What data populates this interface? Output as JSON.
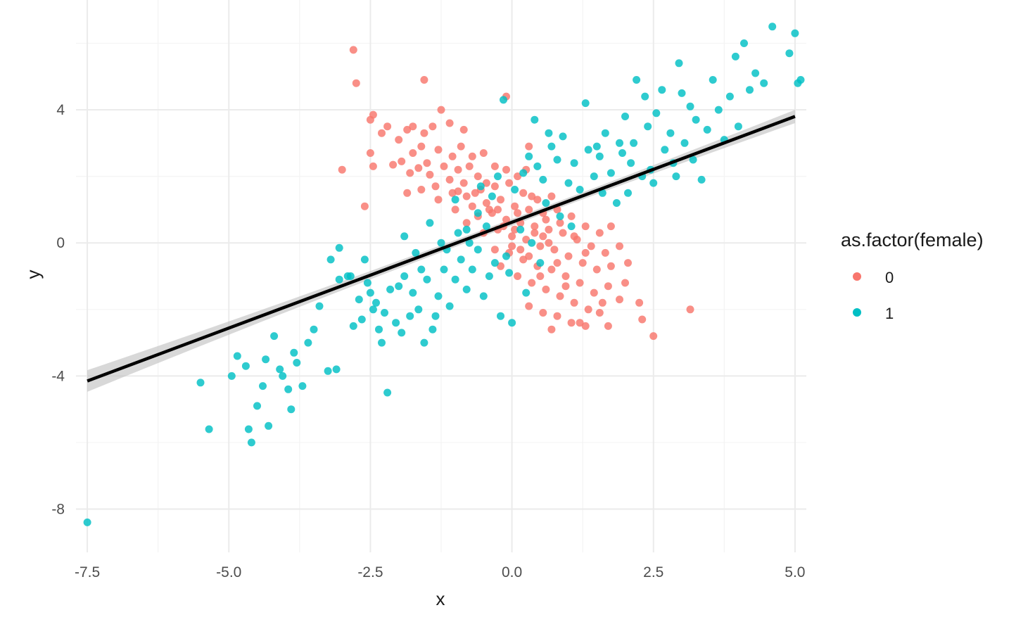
{
  "chart_data": {
    "type": "scatter",
    "title": "",
    "xlabel": "x",
    "ylabel": "y",
    "xlim": [
      -7.7,
      5.2
    ],
    "ylim": [
      -9.3,
      7.3
    ],
    "x_ticks": [
      -7.5,
      -5.0,
      -2.5,
      0.0,
      2.5,
      5.0
    ],
    "x_tick_labels": [
      "-7.5",
      "-5.0",
      "-2.5",
      "0.0",
      "2.5",
      "5.0"
    ],
    "y_ticks": [
      -8,
      -4,
      0,
      4
    ],
    "y_tick_labels": [
      "-8",
      "-4",
      "0",
      "4"
    ],
    "grid": true,
    "legend": {
      "title": "as.factor(female)",
      "position": "right"
    },
    "series": [
      {
        "name": "0",
        "color": "#F8766D",
        "points": [
          [
            -2.8,
            5.8
          ],
          [
            -2.75,
            4.8
          ],
          [
            -1.55,
            4.9
          ],
          [
            -1.25,
            4.0
          ],
          [
            -0.1,
            4.4
          ],
          [
            -3.0,
            2.2
          ],
          [
            -2.6,
            1.1
          ],
          [
            -2.5,
            3.7
          ],
          [
            -2.45,
            3.85
          ],
          [
            -2.3,
            3.3
          ],
          [
            -2.2,
            3.5
          ],
          [
            -2.5,
            2.7
          ],
          [
            -2.45,
            2.3
          ],
          [
            -2.0,
            3.1
          ],
          [
            -1.85,
            3.4
          ],
          [
            -1.75,
            3.5
          ],
          [
            -1.55,
            3.3
          ],
          [
            -1.4,
            3.5
          ],
          [
            -1.1,
            3.6
          ],
          [
            -0.85,
            3.4
          ],
          [
            -0.9,
            2.9
          ],
          [
            -1.05,
            2.6
          ],
          [
            -1.3,
            2.8
          ],
          [
            -1.6,
            2.9
          ],
          [
            -1.75,
            2.7
          ],
          [
            -1.95,
            2.45
          ],
          [
            -2.1,
            2.35
          ],
          [
            -1.8,
            2.1
          ],
          [
            -1.5,
            2.4
          ],
          [
            -1.2,
            2.3
          ],
          [
            -0.95,
            2.2
          ],
          [
            -0.7,
            2.6
          ],
          [
            -0.5,
            2.7
          ],
          [
            -0.3,
            2.3
          ],
          [
            -0.1,
            2.2
          ],
          [
            0.1,
            2.0
          ],
          [
            0.25,
            2.2
          ],
          [
            0.3,
            2.9
          ],
          [
            -0.6,
            2.0
          ],
          [
            -0.85,
            1.8
          ],
          [
            -1.1,
            1.9
          ],
          [
            -1.35,
            1.7
          ],
          [
            -1.6,
            1.6
          ],
          [
            -1.85,
            1.5
          ],
          [
            -1.3,
            1.3
          ],
          [
            -1.05,
            1.5
          ],
          [
            -0.8,
            1.4
          ],
          [
            -0.55,
            1.6
          ],
          [
            -0.3,
            1.7
          ],
          [
            -0.05,
            1.8
          ],
          [
            0.2,
            1.5
          ],
          [
            0.45,
            1.3
          ],
          [
            0.7,
            1.4
          ],
          [
            -0.7,
            1.1
          ],
          [
            -0.45,
            1.2
          ],
          [
            -0.2,
            1.3
          ],
          [
            0.05,
            1.1
          ],
          [
            0.3,
            1.0
          ],
          [
            0.55,
            0.9
          ],
          [
            0.8,
            1.0
          ],
          [
            1.05,
            0.8
          ],
          [
            1.3,
            0.5
          ],
          [
            1.55,
            0.3
          ],
          [
            1.75,
            0.5
          ],
          [
            -0.6,
            0.8
          ],
          [
            -0.35,
            0.9
          ],
          [
            -0.1,
            0.7
          ],
          [
            0.15,
            0.6
          ],
          [
            0.4,
            0.5
          ],
          [
            0.65,
            0.4
          ],
          [
            0.9,
            0.3
          ],
          [
            1.15,
            0.1
          ],
          [
            1.4,
            -0.1
          ],
          [
            1.65,
            -0.3
          ],
          [
            1.9,
            -0.1
          ],
          [
            2.05,
            -0.6
          ],
          [
            -0.5,
            0.3
          ],
          [
            -0.25,
            0.4
          ],
          [
            0.0,
            0.2
          ],
          [
            0.25,
            0.1
          ],
          [
            0.5,
            -0.1
          ],
          [
            0.75,
            -0.2
          ],
          [
            1.0,
            -0.4
          ],
          [
            1.25,
            -0.6
          ],
          [
            1.5,
            -0.8
          ],
          [
            1.75,
            -0.7
          ],
          [
            2.0,
            -1.2
          ],
          [
            -0.3,
            -0.2
          ],
          [
            -0.05,
            -0.3
          ],
          [
            0.2,
            -0.5
          ],
          [
            0.45,
            -0.7
          ],
          [
            0.7,
            -0.8
          ],
          [
            0.95,
            -1.0
          ],
          [
            1.2,
            -1.2
          ],
          [
            1.45,
            -1.5
          ],
          [
            1.7,
            -1.3
          ],
          [
            1.9,
            -1.7
          ],
          [
            0.1,
            -1.0
          ],
          [
            0.35,
            -1.2
          ],
          [
            0.6,
            -1.4
          ],
          [
            0.85,
            -1.6
          ],
          [
            1.1,
            -1.8
          ],
          [
            1.35,
            -2.0
          ],
          [
            1.55,
            -2.1
          ],
          [
            0.3,
            -1.9
          ],
          [
            0.55,
            -2.1
          ],
          [
            0.8,
            -2.2
          ],
          [
            1.05,
            -2.4
          ],
          [
            1.3,
            -2.5
          ],
          [
            1.7,
            -2.5
          ],
          [
            0.7,
            -2.6
          ],
          [
            1.2,
            -2.4
          ],
          [
            2.25,
            -1.8
          ],
          [
            2.3,
            -2.3
          ],
          [
            2.5,
            -2.8
          ],
          [
            3.15,
            -2.0
          ],
          [
            -0.4,
            1.0
          ],
          [
            -0.15,
            0.5
          ],
          [
            0.1,
            0.9
          ],
          [
            0.35,
            1.4
          ],
          [
            0.6,
            0.7
          ],
          [
            -0.8,
            0.6
          ],
          [
            -1.0,
            1.0
          ],
          [
            -0.2,
            -0.7
          ],
          [
            0.0,
            -0.1
          ],
          [
            0.3,
            -0.4
          ],
          [
            0.55,
            0.2
          ],
          [
            0.8,
            -0.6
          ],
          [
            -0.45,
            1.8
          ],
          [
            -0.65,
            1.5
          ],
          [
            -0.25,
            1.0
          ],
          [
            0.05,
            0.4
          ],
          [
            0.4,
            0.3
          ],
          [
            0.15,
            -0.2
          ],
          [
            0.65,
            0.0
          ],
          [
            -1.45,
            2.05
          ],
          [
            -1.65,
            2.25
          ],
          [
            -0.95,
            1.55
          ],
          [
            0.85,
            0.6
          ],
          [
            1.1,
            0.2
          ],
          [
            1.3,
            -0.3
          ],
          [
            0.5,
            -1.0
          ],
          [
            0.95,
            -1.3
          ],
          [
            1.6,
            -1.8
          ],
          [
            -0.75,
            2.3
          ]
        ]
      },
      {
        "name": "1",
        "color": "#00BFC4",
        "points": [
          [
            -7.5,
            -8.4
          ],
          [
            -5.5,
            -4.2
          ],
          [
            -5.35,
            -5.6
          ],
          [
            -4.95,
            -4.0
          ],
          [
            -4.85,
            -3.4
          ],
          [
            -4.7,
            -3.7
          ],
          [
            -4.65,
            -5.6
          ],
          [
            -4.6,
            -6.0
          ],
          [
            -4.5,
            -4.9
          ],
          [
            -4.4,
            -4.3
          ],
          [
            -4.35,
            -3.5
          ],
          [
            -4.3,
            -5.5
          ],
          [
            -4.2,
            -2.8
          ],
          [
            -4.1,
            -3.8
          ],
          [
            -4.05,
            -4.0
          ],
          [
            -3.95,
            -4.4
          ],
          [
            -3.9,
            -5.0
          ],
          [
            -3.85,
            -3.3
          ],
          [
            -3.8,
            -3.6
          ],
          [
            -3.7,
            -4.3
          ],
          [
            -3.6,
            -3.0
          ],
          [
            -3.5,
            -2.6
          ],
          [
            -3.4,
            -1.9
          ],
          [
            -3.25,
            -3.85
          ],
          [
            -3.1,
            -3.8
          ],
          [
            -3.05,
            -1.1
          ],
          [
            -3.05,
            -0.15
          ],
          [
            -3.2,
            -0.5
          ],
          [
            -2.9,
            -1.0
          ],
          [
            -2.8,
            -2.5
          ],
          [
            -2.7,
            -1.7
          ],
          [
            -2.6,
            -0.5
          ],
          [
            -2.55,
            -1.2
          ],
          [
            -2.45,
            -2.0
          ],
          [
            -2.4,
            -1.8
          ],
          [
            -2.35,
            -2.6
          ],
          [
            -2.3,
            -3.0
          ],
          [
            -2.25,
            -2.1
          ],
          [
            -2.2,
            -4.5
          ],
          [
            -2.15,
            -1.4
          ],
          [
            -2.05,
            -2.4
          ],
          [
            -1.95,
            -2.7
          ],
          [
            -1.9,
            -1.0
          ],
          [
            -1.8,
            -2.2
          ],
          [
            -1.75,
            -1.5
          ],
          [
            -1.65,
            -2.0
          ],
          [
            -1.55,
            -3.0
          ],
          [
            -1.5,
            -1.1
          ],
          [
            -1.4,
            -2.6
          ],
          [
            -1.3,
            -1.6
          ],
          [
            -1.2,
            -0.8
          ],
          [
            -1.1,
            -1.9
          ],
          [
            -1.0,
            -1.1
          ],
          [
            -0.9,
            -0.5
          ],
          [
            -0.8,
            -1.4
          ],
          [
            -0.7,
            -0.8
          ],
          [
            -0.6,
            -0.2
          ],
          [
            -0.5,
            -1.6
          ],
          [
            -0.4,
            -1.0
          ],
          [
            -0.3,
            -0.6
          ],
          [
            -0.2,
            -2.2
          ],
          [
            -0.1,
            -0.4
          ],
          [
            0.0,
            -2.4
          ],
          [
            -1.9,
            0.2
          ],
          [
            -1.7,
            -0.3
          ],
          [
            -1.45,
            0.6
          ],
          [
            -1.25,
            0.0
          ],
          [
            -1.0,
            1.3
          ],
          [
            -0.8,
            0.4
          ],
          [
            -0.6,
            0.9
          ],
          [
            -0.45,
            0.5
          ],
          [
            -0.35,
            1.4
          ],
          [
            -0.15,
            4.3
          ],
          [
            -0.25,
            2.0
          ],
          [
            0.05,
            1.6
          ],
          [
            0.2,
            2.1
          ],
          [
            0.3,
            2.6
          ],
          [
            0.45,
            2.3
          ],
          [
            0.55,
            1.9
          ],
          [
            0.7,
            2.9
          ],
          [
            0.8,
            2.5
          ],
          [
            0.9,
            3.2
          ],
          [
            1.0,
            1.8
          ],
          [
            1.1,
            2.4
          ],
          [
            1.2,
            1.6
          ],
          [
            1.3,
            4.2
          ],
          [
            1.35,
            2.8
          ],
          [
            1.45,
            2.0
          ],
          [
            1.55,
            2.6
          ],
          [
            1.65,
            3.3
          ],
          [
            1.75,
            2.1
          ],
          [
            1.85,
            1.2
          ],
          [
            1.95,
            2.7
          ],
          [
            2.0,
            3.8
          ],
          [
            2.05,
            1.5
          ],
          [
            2.1,
            2.4
          ],
          [
            2.15,
            3.0
          ],
          [
            2.2,
            4.9
          ],
          [
            2.3,
            2.0
          ],
          [
            2.35,
            4.4
          ],
          [
            2.4,
            3.5
          ],
          [
            2.45,
            2.2
          ],
          [
            2.55,
            3.9
          ],
          [
            2.65,
            4.6
          ],
          [
            2.7,
            2.8
          ],
          [
            2.8,
            3.3
          ],
          [
            2.85,
            2.4
          ],
          [
            2.95,
            5.4
          ],
          [
            3.0,
            4.5
          ],
          [
            3.05,
            3.0
          ],
          [
            3.15,
            4.1
          ],
          [
            3.25,
            3.7
          ],
          [
            3.35,
            1.9
          ],
          [
            3.45,
            3.4
          ],
          [
            3.55,
            4.9
          ],
          [
            3.65,
            4.0
          ],
          [
            3.75,
            3.1
          ],
          [
            3.85,
            4.4
          ],
          [
            3.95,
            5.6
          ],
          [
            4.0,
            3.5
          ],
          [
            4.1,
            6.0
          ],
          [
            4.2,
            4.6
          ],
          [
            4.3,
            5.1
          ],
          [
            4.45,
            4.8
          ],
          [
            4.6,
            6.5
          ],
          [
            4.9,
            5.7
          ],
          [
            5.0,
            6.3
          ],
          [
            5.05,
            4.8
          ],
          [
            5.1,
            4.9
          ],
          [
            0.25,
            -1.5
          ],
          [
            -0.05,
            -0.9
          ],
          [
            0.15,
            0.4
          ],
          [
            0.35,
            0.0
          ],
          [
            0.6,
            1.2
          ],
          [
            0.85,
            0.8
          ],
          [
            1.05,
            0.5
          ],
          [
            -1.6,
            -0.8
          ],
          [
            -1.35,
            -2.2
          ],
          [
            -2.0,
            -1.3
          ],
          [
            -2.5,
            -1.5
          ],
          [
            -2.65,
            -2.3
          ],
          [
            -1.15,
            -0.2
          ],
          [
            -0.95,
            0.3
          ],
          [
            1.6,
            1.5
          ],
          [
            2.5,
            1.8
          ],
          [
            2.9,
            2.0
          ],
          [
            3.2,
            2.5
          ],
          [
            1.5,
            2.9
          ],
          [
            1.9,
            3.0
          ],
          [
            0.65,
            3.3
          ],
          [
            0.4,
            3.7
          ],
          [
            -0.55,
            1.7
          ],
          [
            -0.75,
            0.0
          ],
          [
            0.5,
            -0.6
          ],
          [
            -2.85,
            -1.0
          ]
        ]
      }
    ],
    "trend_line": {
      "x": [
        -7.5,
        5.0
      ],
      "y": [
        -4.15,
        3.8
      ],
      "color": "#000000",
      "band_color": "#bebebe"
    }
  }
}
